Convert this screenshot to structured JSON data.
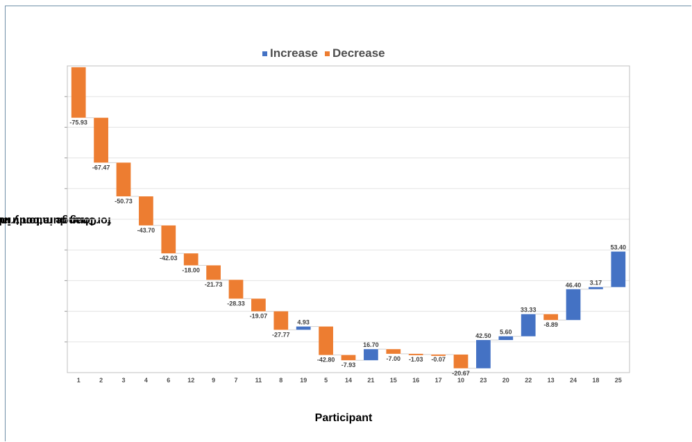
{
  "chart_data": {
    "type": "bar",
    "subtype": "waterfall",
    "ylabel_line1": "Change in body index",
    "ylabel_line2": "for long duration trials",
    "xlabel": "Participant",
    "legend": [
      {
        "name": "Increase",
        "color": "#4472c4"
      },
      {
        "name": "Decrease",
        "color": "#ed7d31"
      }
    ],
    "legend_position": "top",
    "grid": true,
    "categories": [
      "1",
      "2",
      "3",
      "4",
      "6",
      "12",
      "9",
      "7",
      "11",
      "8",
      "19",
      "5",
      "14",
      "21",
      "15",
      "16",
      "17",
      "10",
      "23",
      "20",
      "22",
      "13",
      "24",
      "18",
      "25"
    ],
    "values": [
      -75.93,
      -67.47,
      -50.73,
      -43.7,
      -42.03,
      -18.0,
      -21.73,
      -28.33,
      -19.07,
      -27.77,
      4.93,
      -42.8,
      -7.93,
      16.7,
      -7.0,
      -1.03,
      -0.07,
      -20.67,
      42.5,
      5.6,
      33.33,
      -8.89,
      46.4,
      3.17,
      53.4
    ],
    "value_labels": [
      "-75.93",
      "-67.47",
      "-50.73",
      "-43.70",
      "-42.03",
      "-18.00",
      "-21.73",
      "-28.33",
      "-19.07",
      "-27.77",
      "4.93",
      "-42.80",
      "-7.93",
      "16.70",
      "-7.00",
      "-1.03",
      "-0.07",
      "-20.67",
      "42.50",
      "5.60",
      "33.33",
      "-8.89",
      "46.40",
      "3.17",
      "53.40"
    ]
  }
}
